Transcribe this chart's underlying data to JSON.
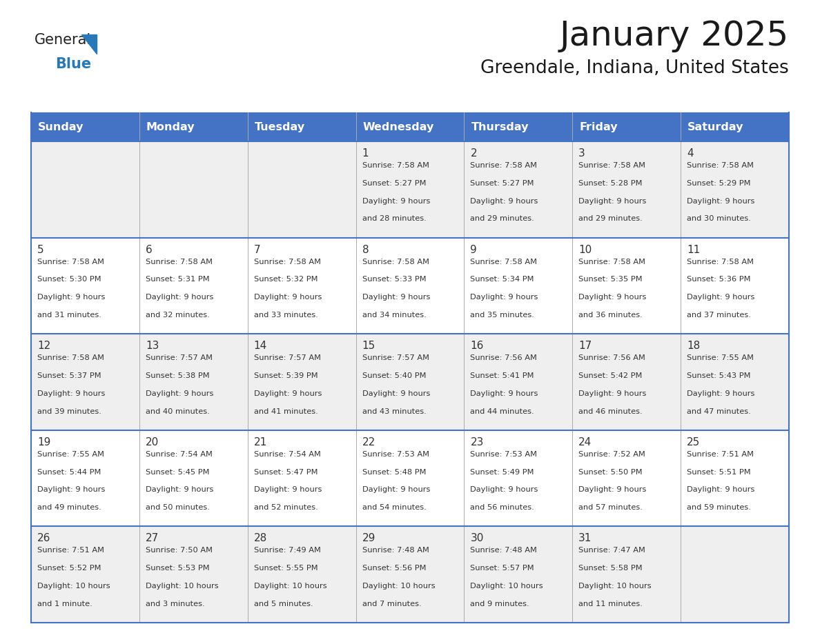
{
  "title": "January 2025",
  "subtitle": "Greendale, Indiana, United States",
  "days_of_week": [
    "Sunday",
    "Monday",
    "Tuesday",
    "Wednesday",
    "Thursday",
    "Friday",
    "Saturday"
  ],
  "header_bg": "#4472C4",
  "header_text_color": "#FFFFFF",
  "cell_bg_odd": "#EFEFEF",
  "cell_bg_even": "#FFFFFF",
  "text_color": "#333333",
  "line_color": "#4472C4",
  "title_color": "#1a1a1a",
  "logo_text_color": "#1a1a1a",
  "logo_blue_color": "#2E86C1",
  "logo_triangle_color": "#2E86C1",
  "calendar_data": [
    [
      {
        "day": "",
        "sunrise": "",
        "sunset": "",
        "daylight_line1": "",
        "daylight_line2": ""
      },
      {
        "day": "",
        "sunrise": "",
        "sunset": "",
        "daylight_line1": "",
        "daylight_line2": ""
      },
      {
        "day": "",
        "sunrise": "",
        "sunset": "",
        "daylight_line1": "",
        "daylight_line2": ""
      },
      {
        "day": "1",
        "sunrise": "7:58 AM",
        "sunset": "5:27 PM",
        "daylight_line1": "Daylight: 9 hours",
        "daylight_line2": "and 28 minutes."
      },
      {
        "day": "2",
        "sunrise": "7:58 AM",
        "sunset": "5:27 PM",
        "daylight_line1": "Daylight: 9 hours",
        "daylight_line2": "and 29 minutes."
      },
      {
        "day": "3",
        "sunrise": "7:58 AM",
        "sunset": "5:28 PM",
        "daylight_line1": "Daylight: 9 hours",
        "daylight_line2": "and 29 minutes."
      },
      {
        "day": "4",
        "sunrise": "7:58 AM",
        "sunset": "5:29 PM",
        "daylight_line1": "Daylight: 9 hours",
        "daylight_line2": "and 30 minutes."
      }
    ],
    [
      {
        "day": "5",
        "sunrise": "7:58 AM",
        "sunset": "5:30 PM",
        "daylight_line1": "Daylight: 9 hours",
        "daylight_line2": "and 31 minutes."
      },
      {
        "day": "6",
        "sunrise": "7:58 AM",
        "sunset": "5:31 PM",
        "daylight_line1": "Daylight: 9 hours",
        "daylight_line2": "and 32 minutes."
      },
      {
        "day": "7",
        "sunrise": "7:58 AM",
        "sunset": "5:32 PM",
        "daylight_line1": "Daylight: 9 hours",
        "daylight_line2": "and 33 minutes."
      },
      {
        "day": "8",
        "sunrise": "7:58 AM",
        "sunset": "5:33 PM",
        "daylight_line1": "Daylight: 9 hours",
        "daylight_line2": "and 34 minutes."
      },
      {
        "day": "9",
        "sunrise": "7:58 AM",
        "sunset": "5:34 PM",
        "daylight_line1": "Daylight: 9 hours",
        "daylight_line2": "and 35 minutes."
      },
      {
        "day": "10",
        "sunrise": "7:58 AM",
        "sunset": "5:35 PM",
        "daylight_line1": "Daylight: 9 hours",
        "daylight_line2": "and 36 minutes."
      },
      {
        "day": "11",
        "sunrise": "7:58 AM",
        "sunset": "5:36 PM",
        "daylight_line1": "Daylight: 9 hours",
        "daylight_line2": "and 37 minutes."
      }
    ],
    [
      {
        "day": "12",
        "sunrise": "7:58 AM",
        "sunset": "5:37 PM",
        "daylight_line1": "Daylight: 9 hours",
        "daylight_line2": "and 39 minutes."
      },
      {
        "day": "13",
        "sunrise": "7:57 AM",
        "sunset": "5:38 PM",
        "daylight_line1": "Daylight: 9 hours",
        "daylight_line2": "and 40 minutes."
      },
      {
        "day": "14",
        "sunrise": "7:57 AM",
        "sunset": "5:39 PM",
        "daylight_line1": "Daylight: 9 hours",
        "daylight_line2": "and 41 minutes."
      },
      {
        "day": "15",
        "sunrise": "7:57 AM",
        "sunset": "5:40 PM",
        "daylight_line1": "Daylight: 9 hours",
        "daylight_line2": "and 43 minutes."
      },
      {
        "day": "16",
        "sunrise": "7:56 AM",
        "sunset": "5:41 PM",
        "daylight_line1": "Daylight: 9 hours",
        "daylight_line2": "and 44 minutes."
      },
      {
        "day": "17",
        "sunrise": "7:56 AM",
        "sunset": "5:42 PM",
        "daylight_line1": "Daylight: 9 hours",
        "daylight_line2": "and 46 minutes."
      },
      {
        "day": "18",
        "sunrise": "7:55 AM",
        "sunset": "5:43 PM",
        "daylight_line1": "Daylight: 9 hours",
        "daylight_line2": "and 47 minutes."
      }
    ],
    [
      {
        "day": "19",
        "sunrise": "7:55 AM",
        "sunset": "5:44 PM",
        "daylight_line1": "Daylight: 9 hours",
        "daylight_line2": "and 49 minutes."
      },
      {
        "day": "20",
        "sunrise": "7:54 AM",
        "sunset": "5:45 PM",
        "daylight_line1": "Daylight: 9 hours",
        "daylight_line2": "and 50 minutes."
      },
      {
        "day": "21",
        "sunrise": "7:54 AM",
        "sunset": "5:47 PM",
        "daylight_line1": "Daylight: 9 hours",
        "daylight_line2": "and 52 minutes."
      },
      {
        "day": "22",
        "sunrise": "7:53 AM",
        "sunset": "5:48 PM",
        "daylight_line1": "Daylight: 9 hours",
        "daylight_line2": "and 54 minutes."
      },
      {
        "day": "23",
        "sunrise": "7:53 AM",
        "sunset": "5:49 PM",
        "daylight_line1": "Daylight: 9 hours",
        "daylight_line2": "and 56 minutes."
      },
      {
        "day": "24",
        "sunrise": "7:52 AM",
        "sunset": "5:50 PM",
        "daylight_line1": "Daylight: 9 hours",
        "daylight_line2": "and 57 minutes."
      },
      {
        "day": "25",
        "sunrise": "7:51 AM",
        "sunset": "5:51 PM",
        "daylight_line1": "Daylight: 9 hours",
        "daylight_line2": "and 59 minutes."
      }
    ],
    [
      {
        "day": "26",
        "sunrise": "7:51 AM",
        "sunset": "5:52 PM",
        "daylight_line1": "Daylight: 10 hours",
        "daylight_line2": "and 1 minute."
      },
      {
        "day": "27",
        "sunrise": "7:50 AM",
        "sunset": "5:53 PM",
        "daylight_line1": "Daylight: 10 hours",
        "daylight_line2": "and 3 minutes."
      },
      {
        "day": "28",
        "sunrise": "7:49 AM",
        "sunset": "5:55 PM",
        "daylight_line1": "Daylight: 10 hours",
        "daylight_line2": "and 5 minutes."
      },
      {
        "day": "29",
        "sunrise": "7:48 AM",
        "sunset": "5:56 PM",
        "daylight_line1": "Daylight: 10 hours",
        "daylight_line2": "and 7 minutes."
      },
      {
        "day": "30",
        "sunrise": "7:48 AM",
        "sunset": "5:57 PM",
        "daylight_line1": "Daylight: 10 hours",
        "daylight_line2": "and 9 minutes."
      },
      {
        "day": "31",
        "sunrise": "7:47 AM",
        "sunset": "5:58 PM",
        "daylight_line1": "Daylight: 10 hours",
        "daylight_line2": "and 11 minutes."
      },
      {
        "day": "",
        "sunrise": "",
        "sunset": "",
        "daylight_line1": "",
        "daylight_line2": ""
      }
    ]
  ]
}
